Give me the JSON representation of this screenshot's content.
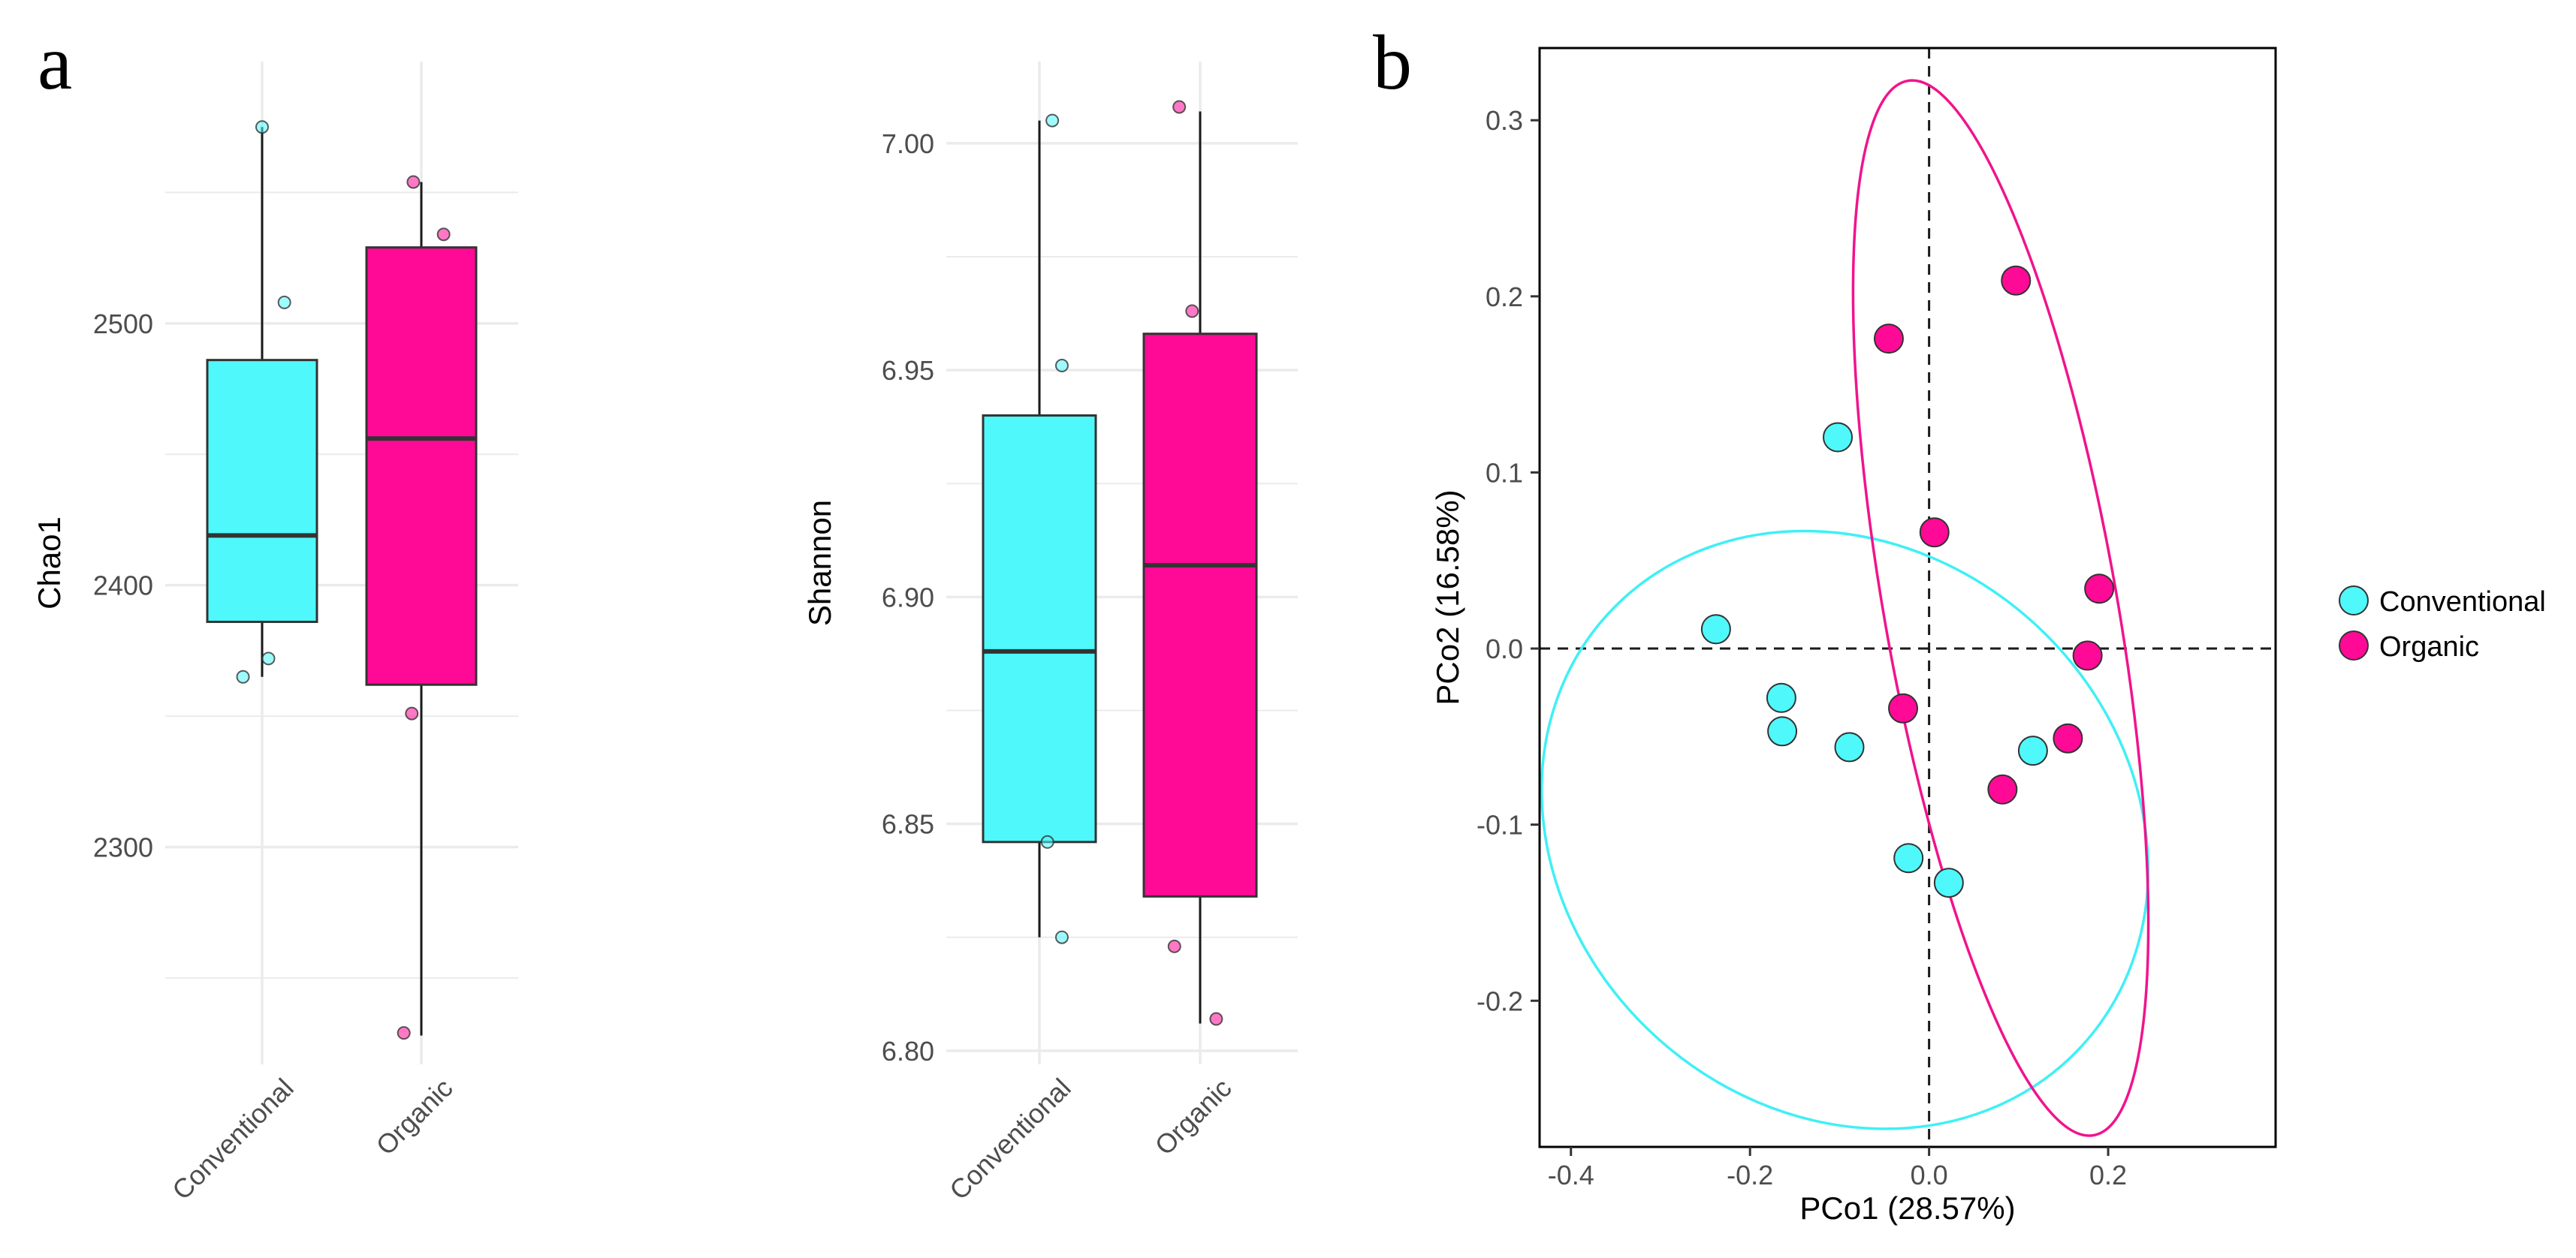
{
  "panels": {
    "a": "a",
    "b": "b"
  },
  "colors": {
    "conventional": "#4ff8fb",
    "organic": "#ff0a97",
    "conventional_ellipse": "#3ff0f5",
    "organic_ellipse": "#f0148c",
    "grid": "#ebebeb"
  },
  "chart_data": [
    {
      "type": "box",
      "ylabel": "Chao1",
      "categories": [
        "Conventional",
        "Organic"
      ],
      "yticks": [
        2300,
        2400,
        2500
      ],
      "ylim": [
        2217,
        2600
      ],
      "boxes": [
        {
          "name": "Conventional",
          "min": 2365,
          "q1": 2386,
          "median": 2419,
          "q3": 2486,
          "max": 2575
        },
        {
          "name": "Organic",
          "min": 2228,
          "q1": 2362,
          "median": 2456,
          "q3": 2529,
          "max": 2554
        }
      ],
      "points": [
        {
          "group": "Conventional",
          "offset": 0.0,
          "y": 2575
        },
        {
          "group": "Conventional",
          "offset": 0.14,
          "y": 2508
        },
        {
          "group": "Conventional",
          "offset": 0.04,
          "y": 2372
        },
        {
          "group": "Conventional",
          "offset": -0.12,
          "y": 2365
        },
        {
          "group": "Organic",
          "offset": -0.05,
          "y": 2554
        },
        {
          "group": "Organic",
          "offset": 0.14,
          "y": 2534
        },
        {
          "group": "Organic",
          "offset": -0.06,
          "y": 2351
        },
        {
          "group": "Organic",
          "offset": -0.11,
          "y": 2229
        }
      ]
    },
    {
      "type": "box",
      "ylabel": "Shannon",
      "categories": [
        "Conventional",
        "Organic"
      ],
      "yticks": [
        6.8,
        6.85,
        6.9,
        6.95,
        7.0
      ],
      "ylim": [
        6.797,
        7.018
      ],
      "boxes": [
        {
          "name": "Conventional",
          "min": 6.825,
          "q1": 6.846,
          "median": 6.888,
          "q3": 6.94,
          "max": 7.005
        },
        {
          "name": "Organic",
          "min": 6.806,
          "q1": 6.834,
          "median": 6.907,
          "q3": 6.958,
          "max": 7.007
        }
      ],
      "points": [
        {
          "group": "Conventional",
          "offset": 0.08,
          "y": 7.005
        },
        {
          "group": "Conventional",
          "offset": 0.14,
          "y": 6.951
        },
        {
          "group": "Conventional",
          "offset": 0.05,
          "y": 6.846
        },
        {
          "group": "Conventional",
          "offset": 0.14,
          "y": 6.825
        },
        {
          "group": "Organic",
          "offset": -0.13,
          "y": 7.008
        },
        {
          "group": "Organic",
          "offset": -0.05,
          "y": 6.963
        },
        {
          "group": "Organic",
          "offset": -0.16,
          "y": 6.823
        },
        {
          "group": "Organic",
          "offset": 0.1,
          "y": 6.807
        }
      ]
    },
    {
      "type": "scatter",
      "xlabel": "PCo1 (28.57%)",
      "ylabel": "PCo2 (16.58%)",
      "xticks": [
        -0.4,
        -0.2,
        0.0,
        0.2
      ],
      "yticks": [
        -0.2,
        -0.1,
        0.0,
        0.1,
        0.2,
        0.3
      ],
      "xlim": [
        -0.435,
        0.387
      ],
      "ylim": [
        -0.283,
        0.341
      ],
      "legend": {
        "position": "right",
        "entries": [
          "Conventional",
          "Organic"
        ]
      },
      "series": [
        {
          "name": "Conventional",
          "x": [
            -0.238,
            -0.102,
            -0.165,
            -0.164,
            -0.089,
            -0.023,
            0.022,
            0.116
          ],
          "y": [
            0.011,
            0.12,
            -0.028,
            -0.047,
            -0.056,
            -0.119,
            -0.133,
            -0.058
          ]
        },
        {
          "name": "Organic",
          "x": [
            -0.045,
            0.097,
            0.006,
            0.19,
            0.177,
            -0.029,
            0.155,
            0.082
          ],
          "y": [
            0.176,
            0.209,
            0.066,
            0.034,
            -0.004,
            -0.034,
            -0.051,
            -0.08
          ]
        }
      ],
      "ellipses": [
        {
          "group": "Conventional",
          "cx": -0.094,
          "cy": -0.103,
          "rx": 0.313,
          "ry": 0.182,
          "rotation_deg": -48
        },
        {
          "group": "Organic",
          "cx": 0.08,
          "cy": 0.023,
          "rx": 0.13,
          "ry": 0.304,
          "rotation_deg": -10
        }
      ]
    }
  ]
}
